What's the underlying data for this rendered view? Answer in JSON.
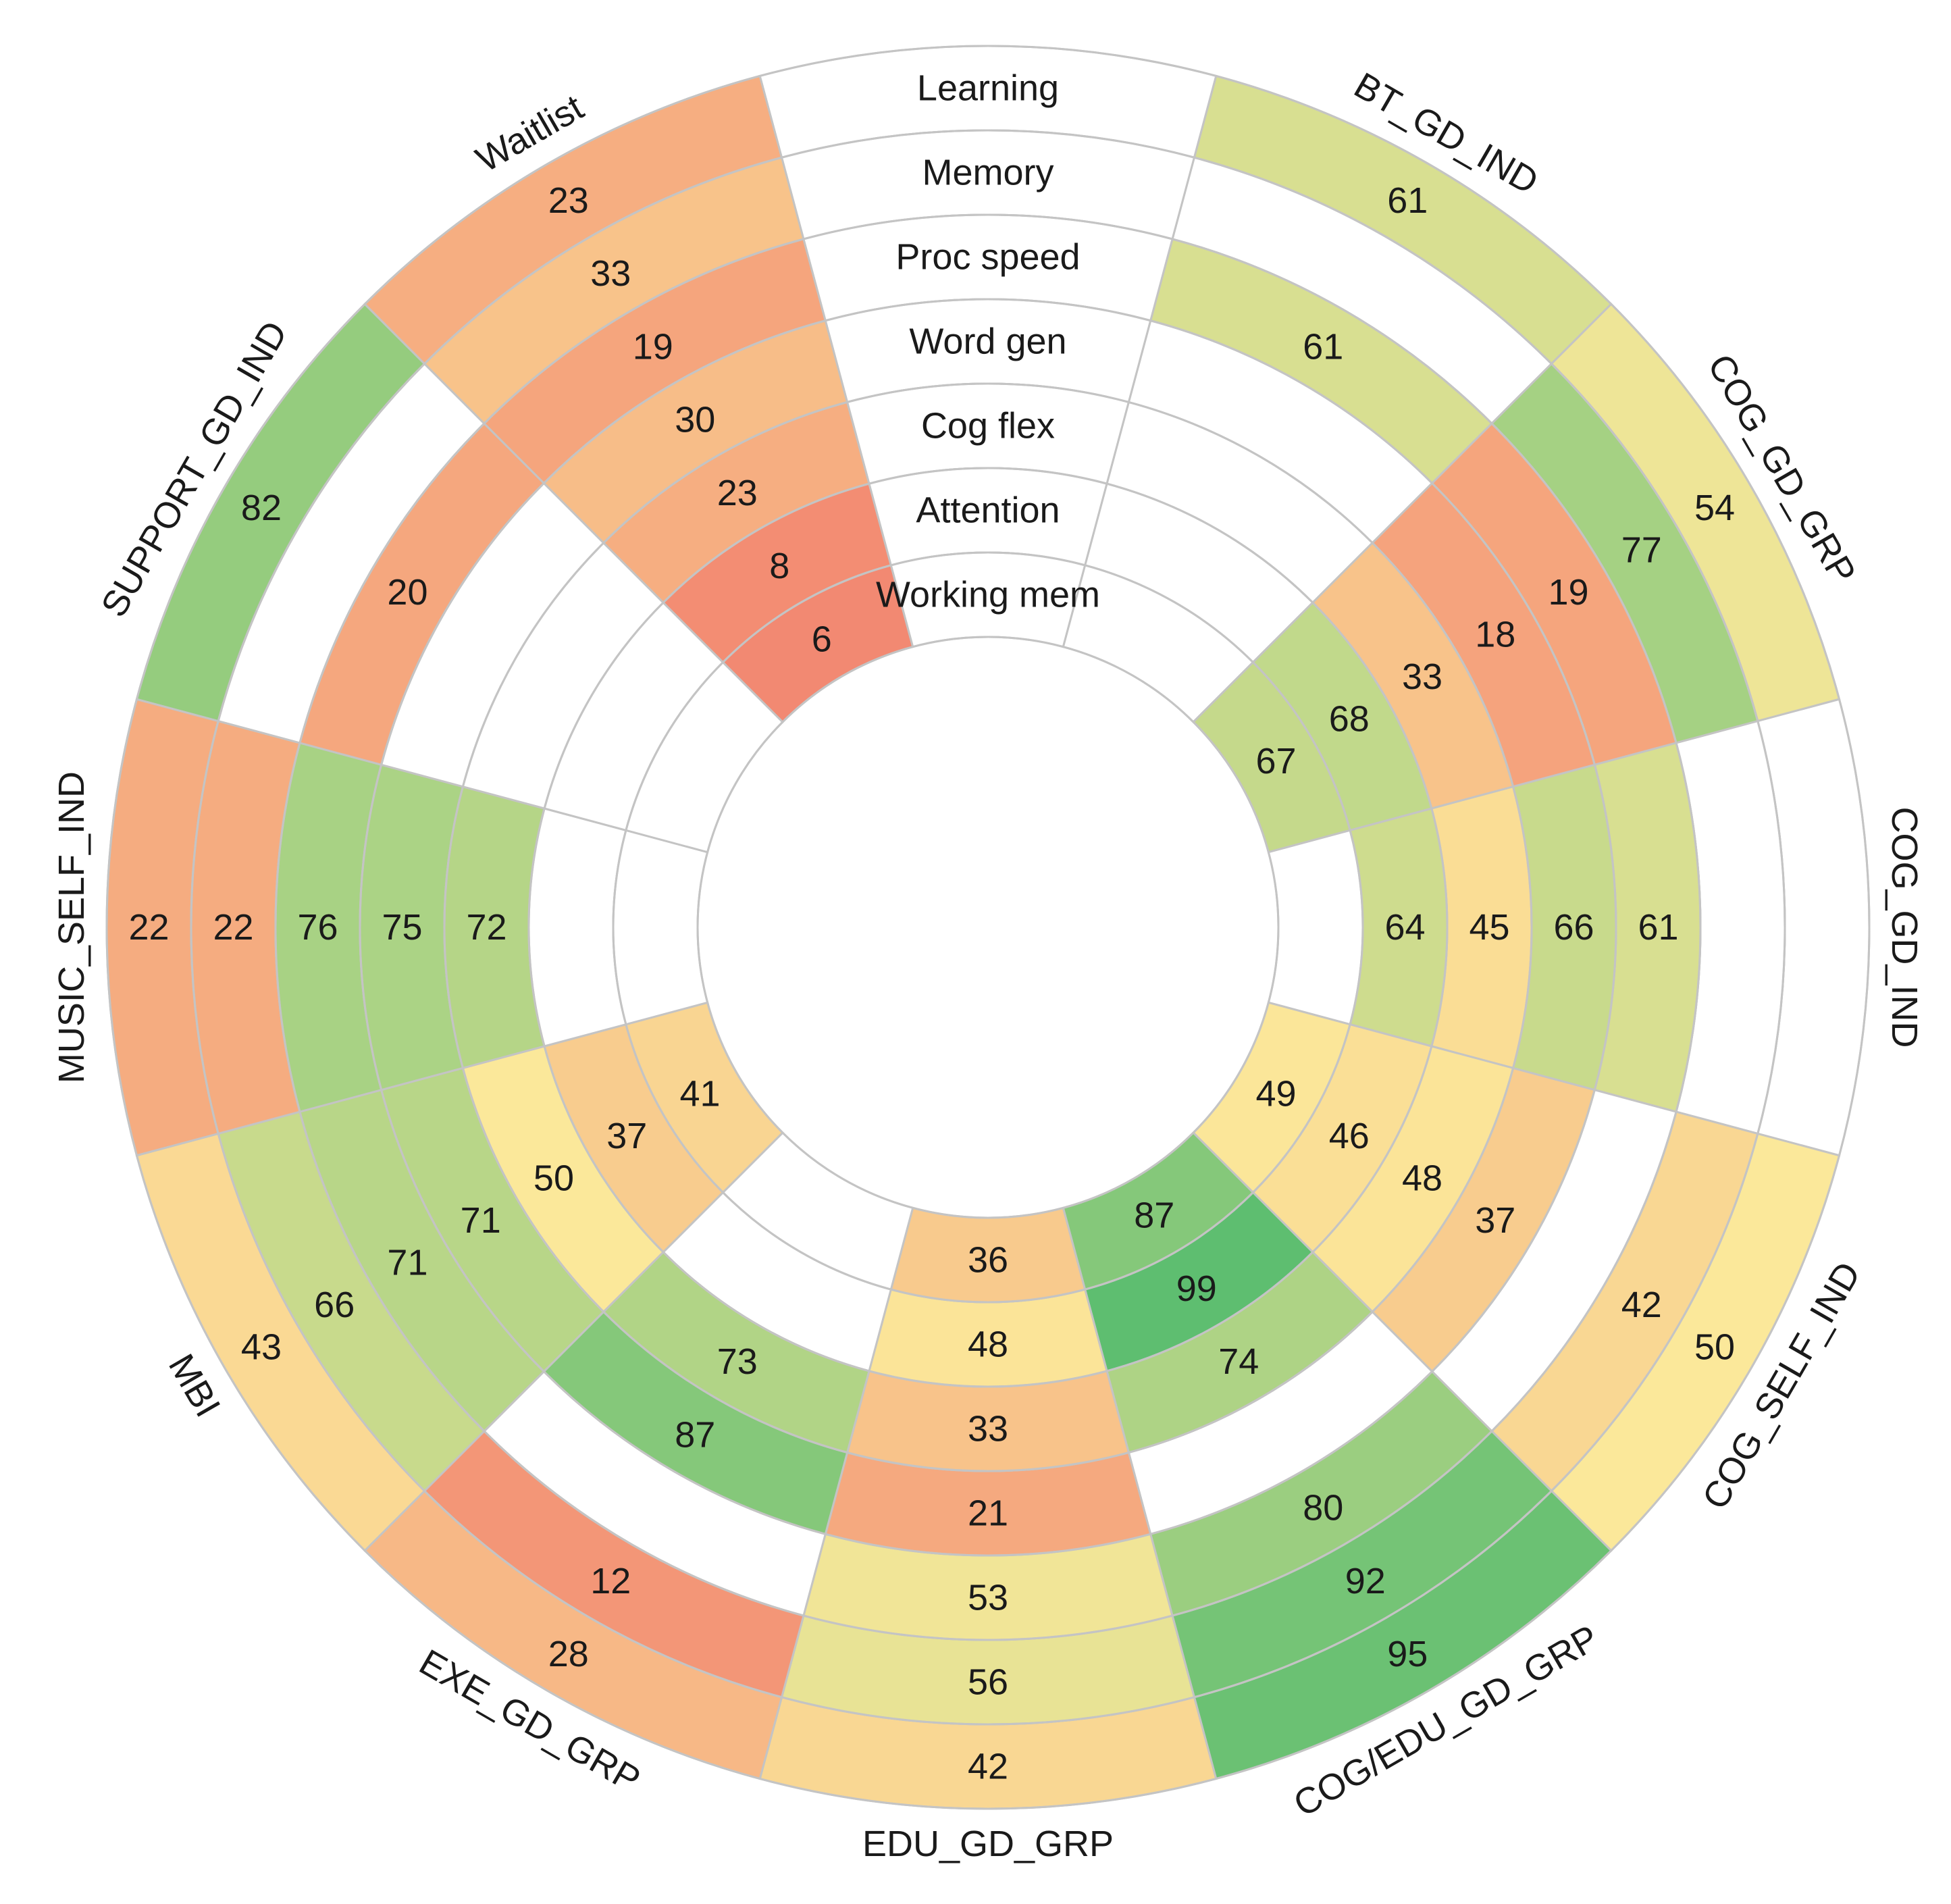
{
  "chart_data": {
    "type": "radial-heatmap",
    "title": "",
    "cognitive_domains": [
      "Learning",
      "Memory",
      "Proc speed",
      "Word gen",
      "Cog flex",
      "Attention",
      "Working mem"
    ],
    "treatments": [
      {
        "name": "BT_GD_IND",
        "values": [
          61,
          null,
          61,
          null,
          null,
          null,
          null
        ]
      },
      {
        "name": "COG_GD_GRP",
        "values": [
          54,
          77,
          19,
          18,
          33,
          68,
          67
        ]
      },
      {
        "name": "COG_GD_IND",
        "values": [
          null,
          null,
          61,
          66,
          45,
          64,
          null
        ]
      },
      {
        "name": "COG_SELF_IND",
        "values": [
          50,
          42,
          null,
          37,
          48,
          46,
          49
        ]
      },
      {
        "name": "COG/EDU_GD_GRP",
        "values": [
          95,
          92,
          80,
          null,
          74,
          99,
          87
        ]
      },
      {
        "name": "EDU_GD_GRP",
        "values": [
          42,
          56,
          53,
          21,
          33,
          48,
          36
        ]
      },
      {
        "name": "EXE_GD_GRP",
        "values": [
          28,
          12,
          null,
          87,
          73,
          null,
          null
        ]
      },
      {
        "name": "MBI",
        "values": [
          43,
          66,
          71,
          71,
          50,
          37,
          41
        ]
      },
      {
        "name": "MUSIC_SELF_IND",
        "values": [
          22,
          22,
          76,
          75,
          72,
          null,
          null
        ]
      },
      {
        "name": "SUPPORT_GD_IND",
        "values": [
          82,
          null,
          20,
          null,
          null,
          null,
          null
        ]
      },
      {
        "name": "Waitlist",
        "values": [
          23,
          33,
          19,
          30,
          23,
          8,
          6
        ]
      }
    ],
    "value_range": [
      0,
      100
    ],
    "color_scale": {
      "low": "#f17c6c",
      "mid": "#fbe89a",
      "high": "#5bbd6f"
    },
    "blank_sector_label": ""
  }
}
